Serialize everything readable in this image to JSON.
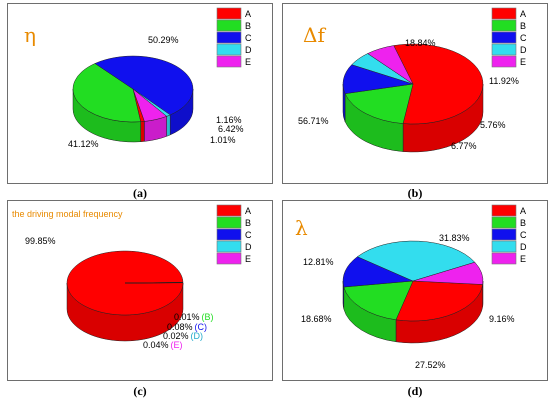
{
  "captions": [
    "(a)",
    "(b)",
    "(c)",
    "(d)"
  ],
  "chart_data": [
    {
      "type": "pie",
      "title": "η",
      "legend_placement": "top-right",
      "legend": [
        "A",
        "B",
        "C",
        "D",
        "E"
      ],
      "colors": [
        "#ff0000",
        "#22dd22",
        "#1010ee",
        "#33ddee",
        "#ee22ee"
      ],
      "values": [
        1.01,
        41.12,
        50.29,
        1.16,
        6.42
      ],
      "labels": [
        "1.01%",
        "41.12%",
        "50.29%",
        "1.16%",
        "6.42%"
      ]
    },
    {
      "type": "pie",
      "title": "Δf",
      "legend_placement": "top-right",
      "legend": [
        "A",
        "B",
        "C",
        "D",
        "E"
      ],
      "colors": [
        "#ff0000",
        "#22dd22",
        "#1010ee",
        "#33ddee",
        "#ee22ee"
      ],
      "values": [
        56.71,
        18.84,
        11.92,
        5.76,
        6.77
      ],
      "labels": [
        "56.71%",
        "18.84%",
        "11.92%",
        "5.76%",
        "6.77%"
      ]
    },
    {
      "type": "pie",
      "title": "the driving modal frequency",
      "legend_placement": "top-right",
      "legend": [
        "A",
        "B",
        "C",
        "D",
        "E"
      ],
      "colors": [
        "#ff0000",
        "#22dd22",
        "#1010ee",
        "#33ddee",
        "#ee22ee"
      ],
      "values": [
        99.85,
        0.01,
        0.08,
        0.02,
        0.04
      ],
      "labels": [
        "99.85%",
        "0.01%",
        "0.08%",
        "0.02%",
        "0.04%"
      ],
      "label_suffixes": [
        "",
        "(B)",
        "(C)",
        "(D)",
        "(E)"
      ]
    },
    {
      "type": "pie",
      "title": "λ",
      "legend_placement": "top-right",
      "legend": [
        "A",
        "B",
        "C",
        "D",
        "E"
      ],
      "colors": [
        "#ff0000",
        "#22dd22",
        "#1010ee",
        "#33ddee",
        "#ee22ee"
      ],
      "values": [
        27.52,
        18.68,
        12.81,
        31.83,
        9.16
      ],
      "labels": [
        "27.52%",
        "18.68%",
        "12.81%",
        "31.83%",
        "9.16%"
      ]
    }
  ]
}
